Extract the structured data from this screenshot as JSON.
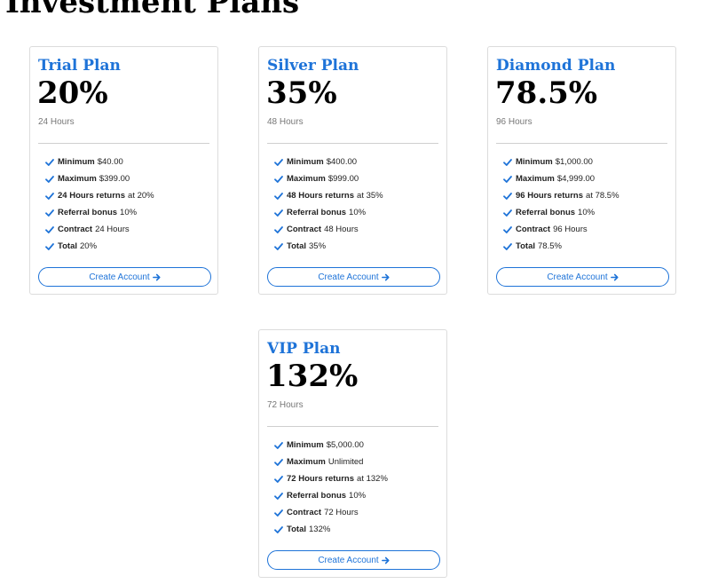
{
  "page": {
    "title": "Investment Plans"
  },
  "colors": {
    "accent": "#1e73d8",
    "border": "#dcdcdc",
    "text": "#212529",
    "muted": "#777777"
  },
  "icons": {
    "feature": "check-icon",
    "button": "arrow-right-icon"
  },
  "plans": [
    {
      "name": "Trial Plan",
      "rate": "20%",
      "duration": "24 Hours",
      "features": [
        {
          "label": "Minimum",
          "value": "$40.00"
        },
        {
          "label": "Maximum",
          "value": "$399.00"
        },
        {
          "label": "24 Hours returns",
          "value": "at 20%"
        },
        {
          "label": "Referral bonus",
          "value": "10%"
        },
        {
          "label": "Contract",
          "value": "24 Hours"
        },
        {
          "label": "Total",
          "value": "20%"
        }
      ],
      "button_label": "Create Account"
    },
    {
      "name": "Silver Plan",
      "rate": "35%",
      "duration": "48 Hours",
      "features": [
        {
          "label": "Minimum",
          "value": "$400.00"
        },
        {
          "label": "Maximum",
          "value": "$999.00"
        },
        {
          "label": "48 Hours returns",
          "value": "at 35%"
        },
        {
          "label": "Referral bonus",
          "value": "10%"
        },
        {
          "label": "Contract",
          "value": "48 Hours"
        },
        {
          "label": "Total",
          "value": "35%"
        }
      ],
      "button_label": "Create Account"
    },
    {
      "name": "Diamond Plan",
      "rate": "78.5%",
      "duration": "96 Hours",
      "features": [
        {
          "label": "Minimum",
          "value": "$1,000.00"
        },
        {
          "label": "Maximum",
          "value": "$4,999.00"
        },
        {
          "label": "96 Hours returns",
          "value": "at 78.5%"
        },
        {
          "label": "Referral bonus",
          "value": "10%"
        },
        {
          "label": "Contract",
          "value": "96 Hours"
        },
        {
          "label": "Total",
          "value": "78.5%"
        }
      ],
      "button_label": "Create Account"
    },
    {
      "name": "VIP Plan",
      "rate": "132%",
      "duration": "72 Hours",
      "features": [
        {
          "label": "Minimum",
          "value": "$5,000.00"
        },
        {
          "label": "Maximum",
          "value": "Unlimited"
        },
        {
          "label": "72 Hours returns",
          "value": "at 132%"
        },
        {
          "label": "Referral bonus",
          "value": "10%"
        },
        {
          "label": "Contract",
          "value": "72 Hours"
        },
        {
          "label": "Total",
          "value": "132%"
        }
      ],
      "button_label": "Create Account"
    }
  ]
}
